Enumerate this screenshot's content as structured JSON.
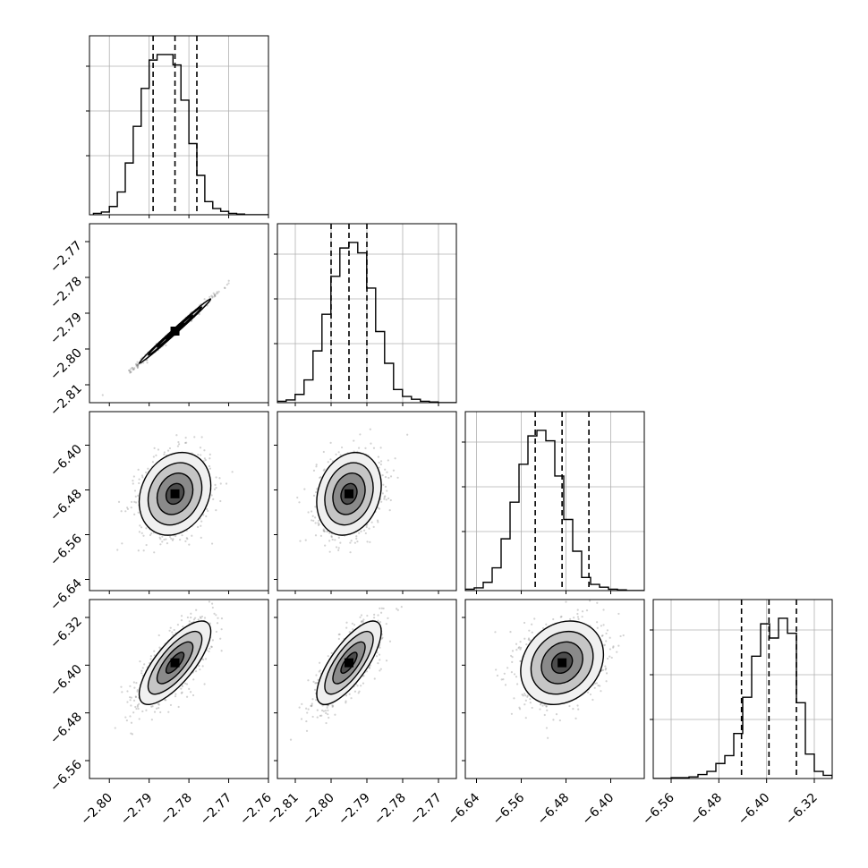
{
  "chart_data": {
    "type": "corner",
    "parameters": 4,
    "colors": {
      "line": "#000000",
      "grid": "#b0b0b0",
      "points": "#7f7f7f"
    },
    "grid": true,
    "axes": [
      {
        "lim": [
          -2.805,
          -2.76
        ],
        "ticks": [
          -2.8,
          -2.79,
          -2.78,
          -2.77,
          -2.76
        ],
        "ticklabels": [
          "−2.80",
          "−2.79",
          "−2.78",
          "−2.77",
          "−2.76"
        ]
      },
      {
        "lim": [
          -2.815,
          -2.765
        ],
        "ticks": [
          -2.81,
          -2.8,
          -2.79,
          -2.78,
          -2.77
        ],
        "ticklabels": [
          "−2.81",
          "−2.80",
          "−2.79",
          "−2.78",
          "−2.77"
        ]
      },
      {
        "lim": [
          -6.66,
          -6.34
        ],
        "ticks": [
          -6.64,
          -6.56,
          -6.48,
          -6.4
        ],
        "ticklabels": [
          "−6.64",
          "−6.56",
          "−6.48",
          "−6.40"
        ]
      },
      {
        "lim": [
          -6.59,
          -6.29
        ],
        "ticks": [
          -6.56,
          -6.48,
          -6.4,
          -6.32
        ],
        "ticklabels": [
          "−6.56",
          "−6.48",
          "−6.40",
          "−6.32"
        ]
      }
    ],
    "histograms": [
      {
        "x": [
          -2.803,
          -2.801,
          -2.799,
          -2.797,
          -2.795,
          -2.793,
          -2.791,
          -2.789,
          -2.787,
          -2.785,
          -2.783,
          -2.781,
          -2.779,
          -2.777,
          -2.775,
          -2.773,
          -2.771,
          -2.769,
          -2.767,
          -2.765,
          -2.763,
          -2.761
        ],
        "counts": [
          2,
          4,
          12,
          33,
          75,
          128,
          183,
          224,
          232,
          232,
          217,
          166,
          103,
          57,
          19,
          9,
          5,
          2,
          1,
          0,
          0,
          0
        ],
        "quantiles": [
          -2.789,
          -2.7835,
          -2.778
        ]
      },
      {
        "x": [
          -2.8138,
          -2.8113,
          -2.8088,
          -2.8063,
          -2.8038,
          -2.8013,
          -2.7988,
          -2.7963,
          -2.7938,
          -2.7913,
          -2.7888,
          -2.7863,
          -2.7838,
          -2.7813,
          -2.7788,
          -2.7763,
          -2.7738,
          -2.7713,
          -2.7688,
          -2.7663
        ],
        "counts": [
          2,
          4,
          12,
          33,
          75,
          128,
          183,
          224,
          232,
          217,
          166,
          103,
          57,
          19,
          9,
          5,
          2,
          1,
          0,
          0
        ],
        "quantiles": [
          -2.8,
          -2.795,
          -2.79
        ]
      },
      {
        "x": [
          -6.652,
          -6.636,
          -6.62,
          -6.604,
          -6.588,
          -6.572,
          -6.556,
          -6.54,
          -6.524,
          -6.508,
          -6.492,
          -6.476,
          -6.46,
          -6.444,
          -6.428,
          -6.412,
          -6.396,
          -6.38,
          -6.364,
          -6.348
        ],
        "counts": [
          2,
          4,
          12,
          33,
          75,
          128,
          183,
          224,
          232,
          217,
          166,
          103,
          57,
          19,
          9,
          5,
          2,
          1,
          0,
          0
        ],
        "quantiles": [
          -6.535,
          -6.487,
          -6.439
        ]
      },
      {
        "x": [
          -6.5825,
          -6.5675,
          -6.5525,
          -6.5375,
          -6.5225,
          -6.5075,
          -6.4925,
          -6.4775,
          -6.4625,
          -6.4475,
          -6.4325,
          -6.4175,
          -6.4025,
          -6.3875,
          -6.3725,
          -6.3575,
          -6.3425,
          -6.3275,
          -6.3125,
          -6.2975
        ],
        "counts": [
          0,
          0,
          1,
          1,
          2,
          5,
          9,
          19,
          29,
          57,
          103,
          155,
          196,
          178,
          203,
          184,
          96,
          31,
          9,
          4
        ],
        "quantiles": [
          -6.442,
          -6.396,
          -6.35
        ]
      }
    ],
    "pairs": [
      {
        "row": 1,
        "col": 0,
        "mean": [
          -2.7835,
          -2.795
        ],
        "sd": [
          0.0045,
          0.0045
        ],
        "rho": 0.995
      },
      {
        "row": 2,
        "col": 0,
        "mean": [
          -2.7835,
          -6.487
        ],
        "sd": [
          0.0045,
          0.037
        ],
        "rho": 0.2
      },
      {
        "row": 2,
        "col": 1,
        "mean": [
          -2.795,
          -6.487
        ],
        "sd": [
          0.0045,
          0.037
        ],
        "rho": 0.2
      },
      {
        "row": 3,
        "col": 0,
        "mean": [
          -2.7835,
          -6.396
        ],
        "sd": [
          0.0045,
          0.035
        ],
        "rho": 0.75
      },
      {
        "row": 3,
        "col": 1,
        "mean": [
          -2.795,
          -6.396
        ],
        "sd": [
          0.0045,
          0.035
        ],
        "rho": 0.75
      },
      {
        "row": 3,
        "col": 2,
        "mean": [
          -6.487,
          -6.396
        ],
        "sd": [
          0.037,
          0.035
        ],
        "rho": 0.2
      }
    ],
    "contour_levels_sigma": [
      0.5,
      1.0,
      1.5,
      2.0
    ]
  }
}
